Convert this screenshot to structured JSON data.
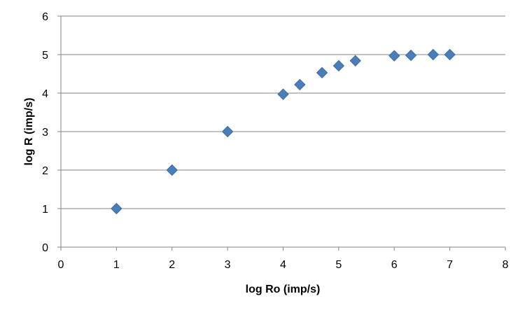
{
  "chart_data": {
    "type": "scatter",
    "title": "",
    "xlabel": "log Ro (imp/s)",
    "ylabel": "log R (imp/s)",
    "xlim": [
      0,
      8
    ],
    "ylim": [
      0,
      6
    ],
    "x_ticks": [
      0,
      1,
      2,
      3,
      4,
      5,
      6,
      7,
      8
    ],
    "y_ticks": [
      0,
      1,
      2,
      3,
      4,
      5,
      6
    ],
    "grid": "horizontal",
    "legend": "none",
    "marker": "diamond",
    "colors": {
      "marker": "#4a7ebb",
      "marker_stroke": "#3d6ba3",
      "grid": "#868686",
      "axis": "#868686"
    },
    "series": [
      {
        "x": [
          1,
          2,
          3,
          4,
          4.3,
          4.7,
          5,
          5.3,
          6,
          6.3,
          6.7,
          7
        ],
        "y": [
          1,
          2,
          3,
          3.97,
          4.22,
          4.53,
          4.71,
          4.84,
          4.97,
          4.98,
          5.0,
          5.0
        ]
      }
    ]
  }
}
